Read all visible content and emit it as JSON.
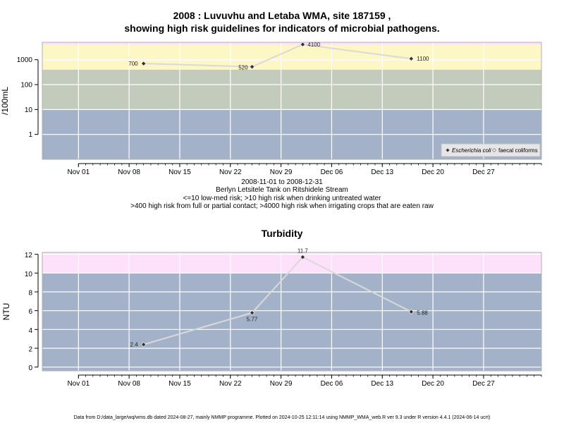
{
  "page": {
    "title_line1": "2008 : Luvuvhu and Letaba WMA, site 187159 ,",
    "title_line2": "showing high risk guidelines for indicators of microbial pathogens.",
    "subtitle_lines": [
      "2008-11-01 to 2008-12-31",
      "Berlyn Letsitele Tank on Ritshidele Stream",
      "<=10 low-med risk; >10 high risk when drinking untreated water",
      ">400 high risk from full or partial contact; >4000 high risk when irrigating crops that are eaten raw"
    ],
    "footer": "Data from D:/data_large/wq/wms.db dated 2024-08-27, mainly NMMP programme. Plotted on 2024-10-25 12:11:14 using NMMP_WMA_web.R ver 9.3 under R version 4.4.1 (2024-06-14 ucrt)"
  },
  "colors": {
    "band_blue": "#a3b2c9",
    "band_gray": "#c3ccbc",
    "band_yellow": "#fdf6c5",
    "band_pink": "#fde0fa",
    "grid": "#ffffff",
    "line": "#d9d9d9",
    "point": "#333333"
  },
  "chart_data": [
    {
      "type": "line",
      "title": "",
      "xlabel": "",
      "ylabel": "/100mL",
      "y_scale": "log10",
      "ylim": [
        0.1,
        5000
      ],
      "yticks": [
        1,
        10,
        100,
        1000
      ],
      "ytick_labels": [
        "1",
        "10",
        "100",
        "1000"
      ],
      "xlim": [
        "2008-10-27",
        "2009-01-04"
      ],
      "xticks": [
        "2008-11-01",
        "2008-11-08",
        "2008-11-15",
        "2008-11-22",
        "2008-11-29",
        "2008-12-06",
        "2008-12-13",
        "2008-12-20",
        "2008-12-27"
      ],
      "xtick_labels": [
        "Nov 01",
        "Nov 08",
        "Nov 15",
        "Nov 22",
        "Nov 29",
        "Dec 06",
        "Dec 13",
        "Dec 20",
        "Dec 27"
      ],
      "bands": [
        {
          "from": 0.1,
          "to": 10,
          "color": "#a3b2c9"
        },
        {
          "from": 10,
          "to": 400,
          "color": "#c3ccbc"
        },
        {
          "from": 400,
          "to": 4000,
          "color": "#fdf6c5"
        },
        {
          "from": 4000,
          "to": 5000,
          "color": "#fde0fa"
        }
      ],
      "series": [
        {
          "name": "Escherichia coli",
          "x": [
            "2008-11-10",
            "2008-11-25",
            "2008-12-02",
            "2008-12-17"
          ],
          "values": [
            700,
            520,
            4100,
            1100
          ],
          "labels": [
            "700",
            "520",
            "4100",
            "1100"
          ]
        }
      ],
      "legend": {
        "placement": "bottom-right",
        "entries": [
          "Escherichia coli",
          "faecal coliforms"
        ]
      },
      "grid": true
    },
    {
      "type": "line",
      "title": "Turbidity",
      "xlabel": "",
      "ylabel": "NTU",
      "y_scale": "linear",
      "ylim": [
        -0.4,
        12.2
      ],
      "yticks": [
        0,
        2,
        4,
        6,
        8,
        10,
        12
      ],
      "ytick_labels": [
        "0",
        "2",
        "4",
        "6",
        "8",
        "10",
        "12"
      ],
      "xlim": [
        "2008-10-27",
        "2009-01-04"
      ],
      "xticks": [
        "2008-11-01",
        "2008-11-08",
        "2008-11-15",
        "2008-11-22",
        "2008-11-29",
        "2008-12-06",
        "2008-12-13",
        "2008-12-20",
        "2008-12-27"
      ],
      "xtick_labels": [
        "Nov 01",
        "Nov 08",
        "Nov 15",
        "Nov 22",
        "Nov 29",
        "Dec 06",
        "Dec 13",
        "Dec 20",
        "Dec 27"
      ],
      "bands": [
        {
          "from": -0.4,
          "to": 10,
          "color": "#a3b2c9"
        },
        {
          "from": 10,
          "to": 12.2,
          "color": "#fde0fa"
        }
      ],
      "series": [
        {
          "name": "",
          "x": [
            "2008-11-10",
            "2008-11-25",
            "2008-12-02",
            "2008-12-17"
          ],
          "values": [
            2.4,
            5.77,
            11.7,
            5.88
          ],
          "labels": [
            "2.4",
            "5.77",
            "11.7",
            "5.88"
          ]
        }
      ],
      "grid": true
    }
  ]
}
